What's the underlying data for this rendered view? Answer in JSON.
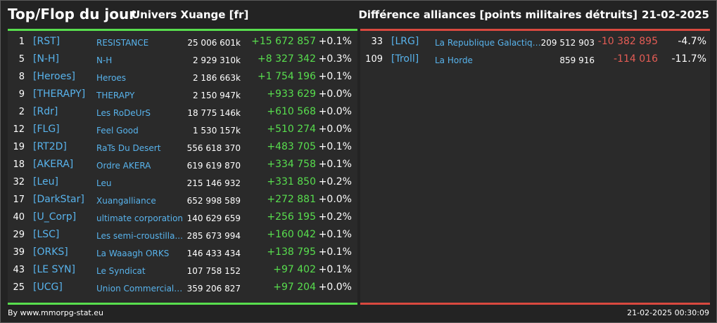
{
  "header": {
    "title": "Top/Flop du jour",
    "subtitle": "Univers Xuange [fr]",
    "description": "Différence alliances [points militaires détruits]",
    "date": "21-02-2025"
  },
  "top": [
    {
      "rank": "1",
      "tag": "[RST]",
      "name": "RESISTANCE",
      "points": "25 006 601k",
      "delta": "+15 672 857",
      "pct": "+0.1%"
    },
    {
      "rank": "5",
      "tag": "[N-H]",
      "name": "N-H",
      "points": "2 929 310k",
      "delta": "+8 327 342",
      "pct": "+0.3%"
    },
    {
      "rank": "8",
      "tag": "[Heroes]",
      "name": "Heroes",
      "points": "2 186 663k",
      "delta": "+1 754 196",
      "pct": "+0.1%"
    },
    {
      "rank": "9",
      "tag": "[THERAPY]",
      "name": "THERAPY",
      "points": "2 150 947k",
      "delta": "+933 629",
      "pct": "+0.0%"
    },
    {
      "rank": "2",
      "tag": "[Rdr]",
      "name": "Les RoDeUrS",
      "points": "18 775 146k",
      "delta": "+610 568",
      "pct": "+0.0%"
    },
    {
      "rank": "12",
      "tag": "[FLG]",
      "name": "Feel Good",
      "points": "1 530 157k",
      "delta": "+510 274",
      "pct": "+0.0%"
    },
    {
      "rank": "19",
      "tag": "[RT2D]",
      "name": "RaTs Du Desert",
      "points": "556 618 370",
      "delta": "+483 705",
      "pct": "+0.1%"
    },
    {
      "rank": "18",
      "tag": "[AKERA]",
      "name": "Ordre AKERA",
      "points": "619 619 870",
      "delta": "+334 758",
      "pct": "+0.1%"
    },
    {
      "rank": "32",
      "tag": "[Leu]",
      "name": "Leu",
      "points": "215 146 932",
      "delta": "+331 850",
      "pct": "+0.2%"
    },
    {
      "rank": "17",
      "tag": "[DarkStar]",
      "name": "Xuangalliance",
      "points": "652 998 589",
      "delta": "+272 881",
      "pct": "+0.0%"
    },
    {
      "rank": "40",
      "tag": "[U_Corp]",
      "name": "ultimate corporation",
      "points": "140 629 659",
      "delta": "+256 195",
      "pct": "+0.2%"
    },
    {
      "rank": "29",
      "tag": "[LSC]",
      "name": "Les semi-croustilla...",
      "points": "285 673 994",
      "delta": "+160 042",
      "pct": "+0.1%"
    },
    {
      "rank": "39",
      "tag": "[ORKS]",
      "name": "La Waaagh ORKS",
      "points": "146 433 434",
      "delta": "+138 795",
      "pct": "+0.1%"
    },
    {
      "rank": "43",
      "tag": "[LE SYN]",
      "name": "Le Syndicat",
      "points": "107 758 152",
      "delta": "+97 402",
      "pct": "+0.1%"
    },
    {
      "rank": "25",
      "tag": "[UCG]",
      "name": "Union Commerciale...",
      "points": "359 206 827",
      "delta": "+97 204",
      "pct": "+0.0%"
    }
  ],
  "flop": [
    {
      "rank": "33",
      "tag": "[LRG]",
      "name": "La Republique Galactique",
      "points": "209 512 903",
      "delta": "-10 382 895",
      "pct": "-4.7%"
    },
    {
      "rank": "109",
      "tag": "[Troll]",
      "name": "La Horde",
      "points": "859 916",
      "delta": "-114 016",
      "pct": "-11.7%"
    }
  ],
  "footer": {
    "credit": "By www.mmorpg-stat.eu",
    "timestamp": "21-02-2025 00:30:09"
  },
  "colors": {
    "positive": "#58de4e",
    "negative": "#e45c55",
    "link": "#58b3ec"
  }
}
